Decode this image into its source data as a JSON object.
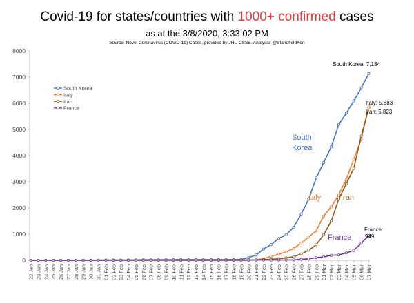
{
  "header": {
    "title_prefix": "Covid-19 for states/countries with ",
    "title_highlight": "1000+ confirmed",
    "title_suffix": " cases",
    "subtitle": "as at the 3/8/2020, 3:33:02 PM",
    "source": "Source: Novel Coronavirus (COVID-19) Cases, provided by JHU CSSE.  Analysis: @StandfieldKen"
  },
  "colors": {
    "south_korea": "#4472c4",
    "italy": "#ed7d31",
    "iran": "#8b5a1c",
    "france": "#7030a0",
    "highlight": "#e8393b",
    "axis": "#bfbfbf"
  },
  "chart_data": {
    "type": "line",
    "ylim": [
      0,
      8000
    ],
    "yticks": [
      "0",
      "1000",
      "2000",
      "3000",
      "4000",
      "5000",
      "6000",
      "7000",
      "8000"
    ],
    "x": [
      "22 Jan",
      "23 Jan",
      "24 Jan",
      "25 Jan",
      "26 Jan",
      "27 Jan",
      "28 Jan",
      "29 Jan",
      "30 Jan",
      "31 Jan",
      "01 Feb",
      "02 Feb",
      "03 Feb",
      "04 Feb",
      "05 Feb",
      "06 Feb",
      "07 Feb",
      "08 Feb",
      "09 Feb",
      "10 Feb",
      "11 Feb",
      "12 Feb",
      "13 Feb",
      "14 Feb",
      "15 Feb",
      "16 Feb",
      "17 Feb",
      "18 Feb",
      "19 Feb",
      "20 Feb",
      "21 Feb",
      "22 Feb",
      "23 Feb",
      "24 Feb",
      "25 Feb",
      "26 Feb",
      "27 Feb",
      "28 Feb",
      "29 Feb",
      "01 Mar",
      "02 Mar",
      "03 Mar",
      "04 Mar",
      "05 Mar",
      "06 Mar",
      "07 Mar"
    ],
    "series": [
      {
        "name": "South Korea",
        "color_key": "south_korea",
        "values": [
          1,
          1,
          2,
          2,
          3,
          4,
          4,
          4,
          4,
          11,
          12,
          15,
          15,
          16,
          19,
          23,
          24,
          24,
          25,
          27,
          28,
          28,
          28,
          28,
          28,
          29,
          30,
          31,
          31,
          104,
          204,
          433,
          602,
          833,
          977,
          1261,
          1766,
          2337,
          3150,
          3736,
          4335,
          5186,
          5621,
          6088,
          6593,
          7134
        ]
      },
      {
        "name": "Italy",
        "color_key": "italy",
        "values": [
          0,
          0,
          0,
          0,
          0,
          0,
          0,
          0,
          0,
          2,
          2,
          2,
          2,
          2,
          2,
          2,
          3,
          3,
          3,
          3,
          3,
          3,
          3,
          3,
          3,
          3,
          3,
          3,
          3,
          3,
          20,
          62,
          155,
          229,
          322,
          453,
          655,
          888,
          1128,
          1694,
          2036,
          2502,
          3089,
          3858,
          4636,
          5883
        ]
      },
      {
        "name": "Iran",
        "color_key": "iran",
        "values": [
          0,
          0,
          0,
          0,
          0,
          0,
          0,
          0,
          0,
          0,
          0,
          0,
          0,
          0,
          0,
          0,
          0,
          0,
          0,
          0,
          0,
          0,
          0,
          0,
          0,
          0,
          0,
          0,
          2,
          5,
          18,
          28,
          43,
          61,
          95,
          139,
          245,
          388,
          593,
          978,
          1501,
          2336,
          2922,
          3513,
          4747,
          5823
        ]
      },
      {
        "name": "France",
        "color_key": "france",
        "values": [
          0,
          0,
          2,
          3,
          3,
          3,
          4,
          5,
          5,
          5,
          6,
          6,
          6,
          6,
          6,
          6,
          6,
          11,
          11,
          11,
          11,
          11,
          11,
          11,
          12,
          12,
          12,
          12,
          12,
          12,
          12,
          12,
          12,
          12,
          14,
          18,
          38,
          57,
          100,
          130,
          191,
          204,
          285,
          377,
          653,
          949
        ]
      }
    ],
    "end_labels": [
      {
        "series": "South Korea",
        "text": "South Korea: 7,134"
      },
      {
        "series": "Italy",
        "text": "Italy: 5,883"
      },
      {
        "series": "Iran",
        "text": "Iran: 5,823"
      },
      {
        "series": "France",
        "text_line1": "France:",
        "text_line2": "949"
      }
    ],
    "series_labels": [
      {
        "series": "South Korea",
        "line1": "South",
        "line2": "Korea"
      },
      {
        "series": "Italy",
        "line1": "Italy"
      },
      {
        "series": "Iran",
        "line1": "Iran"
      },
      {
        "series": "France",
        "line1": "France"
      }
    ],
    "legend": {
      "position": "top-left",
      "items": [
        "South Korea",
        "Italy",
        "Iran",
        "France"
      ]
    },
    "grid": false
  }
}
